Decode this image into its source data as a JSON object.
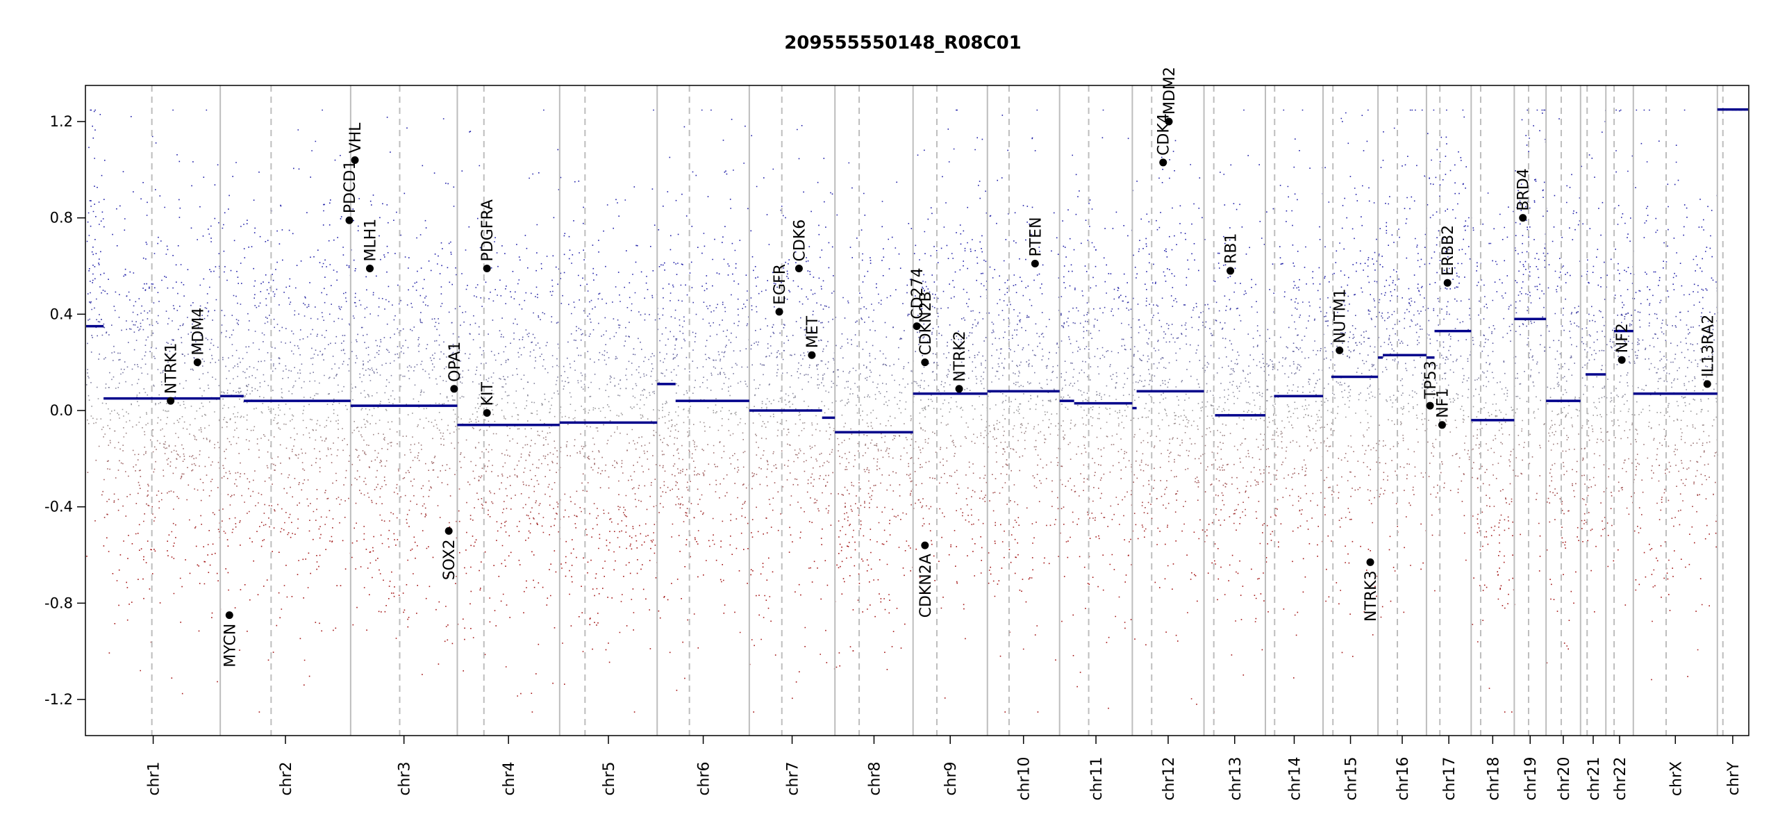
{
  "chart_data": {
    "type": "scatter",
    "subtype": "copy-number-profile",
    "title": "209555550148_R08C01",
    "xlabel": "",
    "ylabel": "",
    "ylim": [
      -1.35,
      1.35
    ],
    "y_ticks": [
      -1.2,
      -0.8,
      -0.4,
      0.0,
      0.4,
      0.8,
      1.2
    ],
    "y_tick_labels": [
      "-1.2",
      "-0.8",
      "-0.4",
      "0.0",
      "0.4",
      "0.8",
      "1.2"
    ],
    "chromosomes": [
      {
        "name": "chr1",
        "length": 249,
        "centromere": 0.49
      },
      {
        "name": "chr2",
        "length": 242,
        "centromere": 0.39
      },
      {
        "name": "chr3",
        "length": 198,
        "centromere": 0.46
      },
      {
        "name": "chr4",
        "length": 190,
        "centromere": 0.26
      },
      {
        "name": "chr5",
        "length": 181,
        "centromere": 0.26
      },
      {
        "name": "chr6",
        "length": 171,
        "centromere": 0.35
      },
      {
        "name": "chr7",
        "length": 159,
        "centromere": 0.38
      },
      {
        "name": "chr8",
        "length": 145,
        "centromere": 0.31
      },
      {
        "name": "chr9",
        "length": 138,
        "centromere": 0.32
      },
      {
        "name": "chr10",
        "length": 134,
        "centromere": 0.3
      },
      {
        "name": "chr11",
        "length": 135,
        "centromere": 0.4
      },
      {
        "name": "chr12",
        "length": 133,
        "centromere": 0.27
      },
      {
        "name": "chr13",
        "length": 114,
        "centromere": 0.16
      },
      {
        "name": "chr14",
        "length": 107,
        "centromere": 0.16
      },
      {
        "name": "chr15",
        "length": 102,
        "centromere": 0.18
      },
      {
        "name": "chr16",
        "length": 90,
        "centromere": 0.4
      },
      {
        "name": "chr17",
        "length": 83,
        "centromere": 0.3
      },
      {
        "name": "chr18",
        "length": 80,
        "centromere": 0.22
      },
      {
        "name": "chr19",
        "length": 59,
        "centromere": 0.45
      },
      {
        "name": "chr20",
        "length": 64,
        "centromere": 0.44
      },
      {
        "name": "chr21",
        "length": 47,
        "centromere": 0.26
      },
      {
        "name": "chr22",
        "length": 51,
        "centromere": 0.3
      },
      {
        "name": "chrX",
        "length": 156,
        "centromere": 0.39
      },
      {
        "name": "chrY",
        "length": 57,
        "centromere": 0.18
      }
    ],
    "segments": [
      {
        "chr": "chr1",
        "start": 0,
        "end": 0.13,
        "value": 0.35
      },
      {
        "chr": "chr1",
        "start": 0.13,
        "end": 1,
        "value": 0.05
      },
      {
        "chr": "chr2",
        "start": 0,
        "end": 0.18,
        "value": 0.06
      },
      {
        "chr": "chr2",
        "start": 0.18,
        "end": 1,
        "value": 0.04
      },
      {
        "chr": "chr3",
        "start": 0,
        "end": 1,
        "value": 0.02
      },
      {
        "chr": "chr4",
        "start": 0,
        "end": 1,
        "value": -0.06
      },
      {
        "chr": "chr5",
        "start": 0,
        "end": 1,
        "value": -0.05
      },
      {
        "chr": "chr6",
        "start": 0,
        "end": 0.2,
        "value": 0.11
      },
      {
        "chr": "chr6",
        "start": 0.2,
        "end": 1,
        "value": 0.04
      },
      {
        "chr": "chr7",
        "start": 0,
        "end": 0.85,
        "value": 0.0
      },
      {
        "chr": "chr7",
        "start": 0.85,
        "end": 1,
        "value": -0.03
      },
      {
        "chr": "chr8",
        "start": 0,
        "end": 1,
        "value": -0.09
      },
      {
        "chr": "chr9",
        "start": 0,
        "end": 1,
        "value": 0.07
      },
      {
        "chr": "chr10",
        "start": 0,
        "end": 1,
        "value": 0.08
      },
      {
        "chr": "chr11",
        "start": 0,
        "end": 0.2,
        "value": 0.04
      },
      {
        "chr": "chr11",
        "start": 0.2,
        "end": 1,
        "value": 0.03
      },
      {
        "chr": "chr12",
        "start": 0,
        "end": 0.06,
        "value": 0.01
      },
      {
        "chr": "chr12",
        "start": 0.06,
        "end": 1,
        "value": 0.08
      },
      {
        "chr": "chr13",
        "start": 0.18,
        "end": 1,
        "value": -0.02
      },
      {
        "chr": "chr14",
        "start": 0.15,
        "end": 1,
        "value": 0.06
      },
      {
        "chr": "chr15",
        "start": 0.15,
        "end": 1,
        "value": 0.14
      },
      {
        "chr": "chr16",
        "start": 0,
        "end": 0.1,
        "value": 0.22
      },
      {
        "chr": "chr16",
        "start": 0.1,
        "end": 1,
        "value": 0.23
      },
      {
        "chr": "chr17",
        "start": 0,
        "end": 0.18,
        "value": 0.22
      },
      {
        "chr": "chr17",
        "start": 0.18,
        "end": 1,
        "value": 0.33
      },
      {
        "chr": "chr18",
        "start": 0,
        "end": 1,
        "value": -0.04
      },
      {
        "chr": "chr19",
        "start": 0,
        "end": 1,
        "value": 0.38
      },
      {
        "chr": "chr20",
        "start": 0,
        "end": 1,
        "value": 0.04
      },
      {
        "chr": "chr21",
        "start": 0.2,
        "end": 1,
        "value": 0.15
      },
      {
        "chr": "chr22",
        "start": 0.3,
        "end": 1,
        "value": 0.33
      },
      {
        "chr": "chrX",
        "start": 0,
        "end": 1,
        "value": 0.07
      },
      {
        "chr": "chrY",
        "start": 0,
        "end": 1,
        "value": 1.25
      }
    ],
    "genes": [
      {
        "name": "NTRK1",
        "chr": "chr1",
        "pos": 0.63,
        "value": 0.04
      },
      {
        "name": "MDM4",
        "chr": "chr1",
        "pos": 0.83,
        "value": 0.2
      },
      {
        "name": "MYCN",
        "chr": "chr2",
        "pos": 0.07,
        "value": -0.85
      },
      {
        "name": "PDCD1",
        "chr": "chr2",
        "pos": 0.99,
        "value": 0.79
      },
      {
        "name": "VHL",
        "chr": "chr3",
        "pos": 0.04,
        "value": 1.04
      },
      {
        "name": "MLH1",
        "chr": "chr3",
        "pos": 0.18,
        "value": 0.59
      },
      {
        "name": "SOX2",
        "chr": "chr3",
        "pos": 0.92,
        "value": -0.5
      },
      {
        "name": "OPA1",
        "chr": "chr3",
        "pos": 0.97,
        "value": 0.09
      },
      {
        "name": "KIT",
        "chr": "chr4",
        "pos": 0.29,
        "value": -0.01
      },
      {
        "name": "PDGFRA",
        "chr": "chr4",
        "pos": 0.29,
        "value": 0.59
      },
      {
        "name": "EGFR",
        "chr": "chr7",
        "pos": 0.35,
        "value": 0.41
      },
      {
        "name": "CDK6",
        "chr": "chr7",
        "pos": 0.58,
        "value": 0.59
      },
      {
        "name": "MET",
        "chr": "chr7",
        "pos": 0.73,
        "value": 0.23
      },
      {
        "name": "CD274",
        "chr": "chr9",
        "pos": 0.05,
        "value": 0.35
      },
      {
        "name": "CDKN2B",
        "chr": "chr9",
        "pos": 0.16,
        "value": 0.2
      },
      {
        "name": "CDKN2A",
        "chr": "chr9",
        "pos": 0.16,
        "value": -0.56
      },
      {
        "name": "NTRK2",
        "chr": "chr9",
        "pos": 0.62,
        "value": 0.09
      },
      {
        "name": "PTEN",
        "chr": "chr10",
        "pos": 0.66,
        "value": 0.61
      },
      {
        "name": "CDK4",
        "chr": "chr12",
        "pos": 0.43,
        "value": 1.03
      },
      {
        "name": "MDM2",
        "chr": "chr12",
        "pos": 0.51,
        "value": 1.2
      },
      {
        "name": "RB1",
        "chr": "chr13",
        "pos": 0.43,
        "value": 0.58
      },
      {
        "name": "NUTM1",
        "chr": "chr15",
        "pos": 0.3,
        "value": 0.25
      },
      {
        "name": "NTRK3",
        "chr": "chr15",
        "pos": 0.86,
        "value": -0.63
      },
      {
        "name": "TP53",
        "chr": "chr17",
        "pos": 0.08,
        "value": 0.02
      },
      {
        "name": "NF1",
        "chr": "chr17",
        "pos": 0.35,
        "value": -0.06
      },
      {
        "name": "ERBB2",
        "chr": "chr17",
        "pos": 0.47,
        "value": 0.53
      },
      {
        "name": "BRD4",
        "chr": "chr19",
        "pos": 0.27,
        "value": 0.8
      },
      {
        "name": "NF2",
        "chr": "chr22",
        "pos": 0.58,
        "value": 0.21
      },
      {
        "name": "IL13RA2",
        "chr": "chrX",
        "pos": 0.88,
        "value": 0.11
      }
    ],
    "colors": {
      "gain": "#1f1fa8",
      "loss": "#a31515",
      "neutral": "#9a9a9a",
      "segment": "#00008b",
      "boundary": "#bdbdbd",
      "gene": "#000000"
    },
    "grid": false,
    "legend": "none"
  }
}
